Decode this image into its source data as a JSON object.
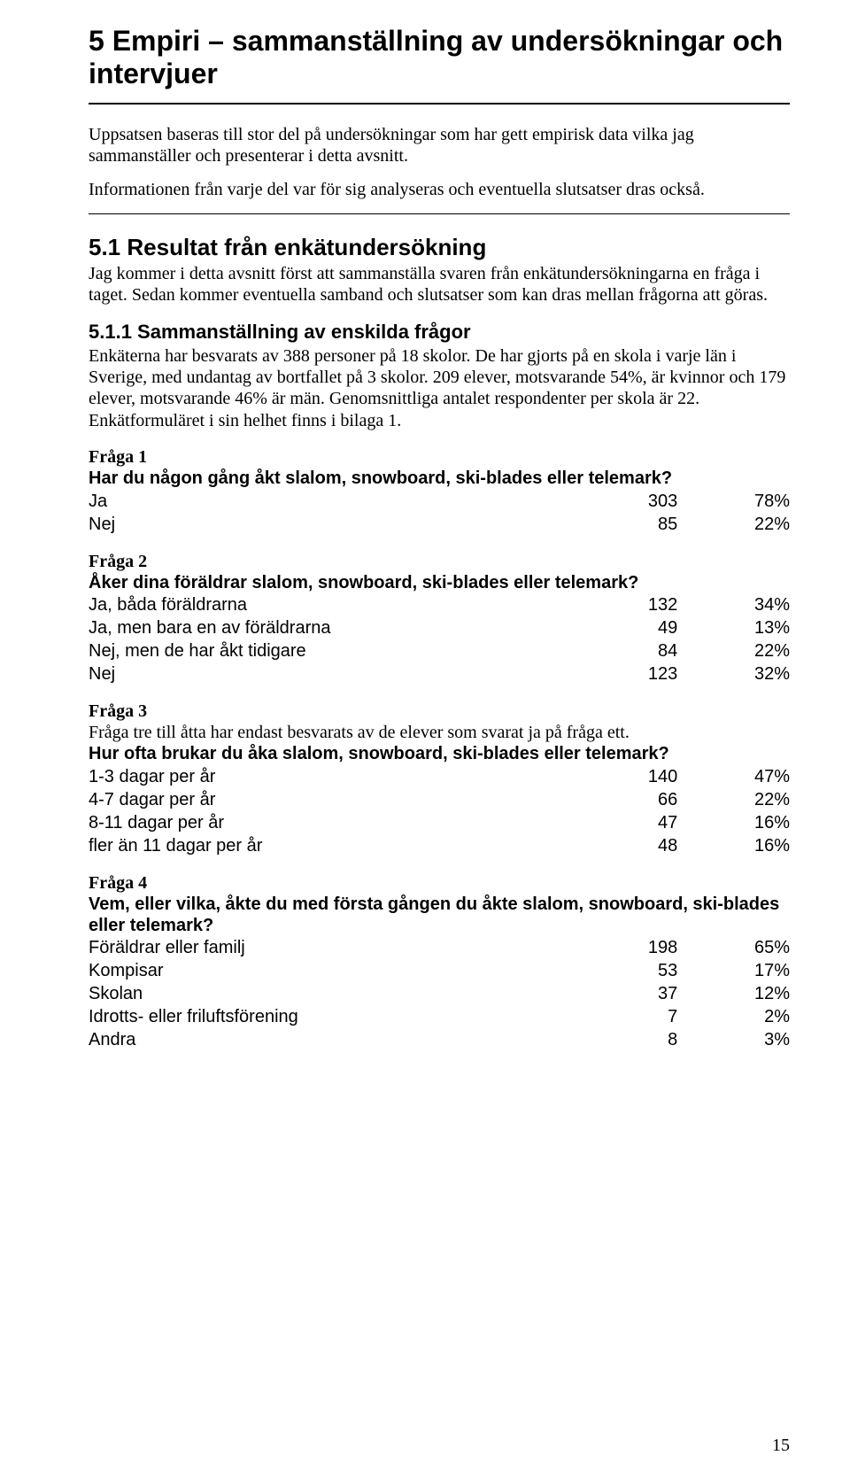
{
  "heading": "5 Empiri – sammanställning av undersökningar och intervjuer",
  "intro_p1": "Uppsatsen baseras till stor del på undersökningar som har gett empirisk data vilka jag sammanställer och presenterar i detta avsnitt.",
  "intro_p2": "Informationen från varje del var för sig analyseras och eventuella slutsatser dras också.",
  "h2": "5.1 Resultat från enkätundersökning",
  "h2_p": "Jag kommer i detta avsnitt först att sammanställa svaren från enkätundersökningarna en fråga i taget. Sedan kommer eventuella samband och slutsatser som kan dras mellan frågorna att göras.",
  "h3": "5.1.1 Sammanställning av enskilda frågor",
  "h3_p": "Enkäterna har besvarats av 388 personer på 18 skolor. De har gjorts på en skola i varje län i Sverige, med undantag av bortfallet på 3 skolor. 209 elever, motsvarande 54%, är kvinnor och 179 elever, motsvarande 46% är män. Genomsnittliga antalet respondenter per skola är 22. Enkätformuläret i sin helhet finns i bilaga 1.",
  "q1": {
    "title": "Fråga 1",
    "question": "Har du någon gång åkt slalom, snowboard, ski-blades eller telemark?",
    "rows": [
      {
        "label": "Ja",
        "n": "303",
        "pct": "78%"
      },
      {
        "label": "Nej",
        "n": "85",
        "pct": "22%"
      }
    ]
  },
  "q2": {
    "title": "Fråga 2",
    "question": "Åker dina föräldrar slalom, snowboard, ski-blades eller telemark?",
    "rows": [
      {
        "label": "Ja, båda föräldrarna",
        "n": "132",
        "pct": "34%"
      },
      {
        "label": "Ja, men bara en av föräldrarna",
        "n": "49",
        "pct": "13%"
      },
      {
        "label": "Nej, men de har åkt tidigare",
        "n": "84",
        "pct": "22%"
      },
      {
        "label": "Nej",
        "n": "123",
        "pct": "32%"
      }
    ]
  },
  "q3": {
    "title": "Fråga 3",
    "note": "Fråga tre till åtta har endast besvarats av de elever som svarat ja på fråga ett.",
    "question": "Hur ofta brukar du åka slalom, snowboard, ski-blades eller telemark?",
    "rows": [
      {
        "label": "1-3 dagar per år",
        "n": "140",
        "pct": "47%"
      },
      {
        "label": "4-7 dagar per år",
        "n": "66",
        "pct": "22%"
      },
      {
        "label": "8-11 dagar per år",
        "n": "47",
        "pct": "16%"
      },
      {
        "label": "fler än 11 dagar per år",
        "n": "48",
        "pct": "16%"
      }
    ]
  },
  "q4": {
    "title": "Fråga 4",
    "question": "Vem, eller vilka, åkte du med första gången du åkte slalom, snowboard, ski-blades eller telemark?",
    "rows": [
      {
        "label": "Föräldrar eller familj",
        "n": "198",
        "pct": "65%"
      },
      {
        "label": "Kompisar",
        "n": "53",
        "pct": "17%"
      },
      {
        "label": "Skolan",
        "n": "37",
        "pct": "12%"
      },
      {
        "label": "Idrotts- eller friluftsförening",
        "n": "7",
        "pct": "2%"
      },
      {
        "label": "Andra",
        "n": "8",
        "pct": "3%"
      }
    ]
  },
  "page_number": "15"
}
